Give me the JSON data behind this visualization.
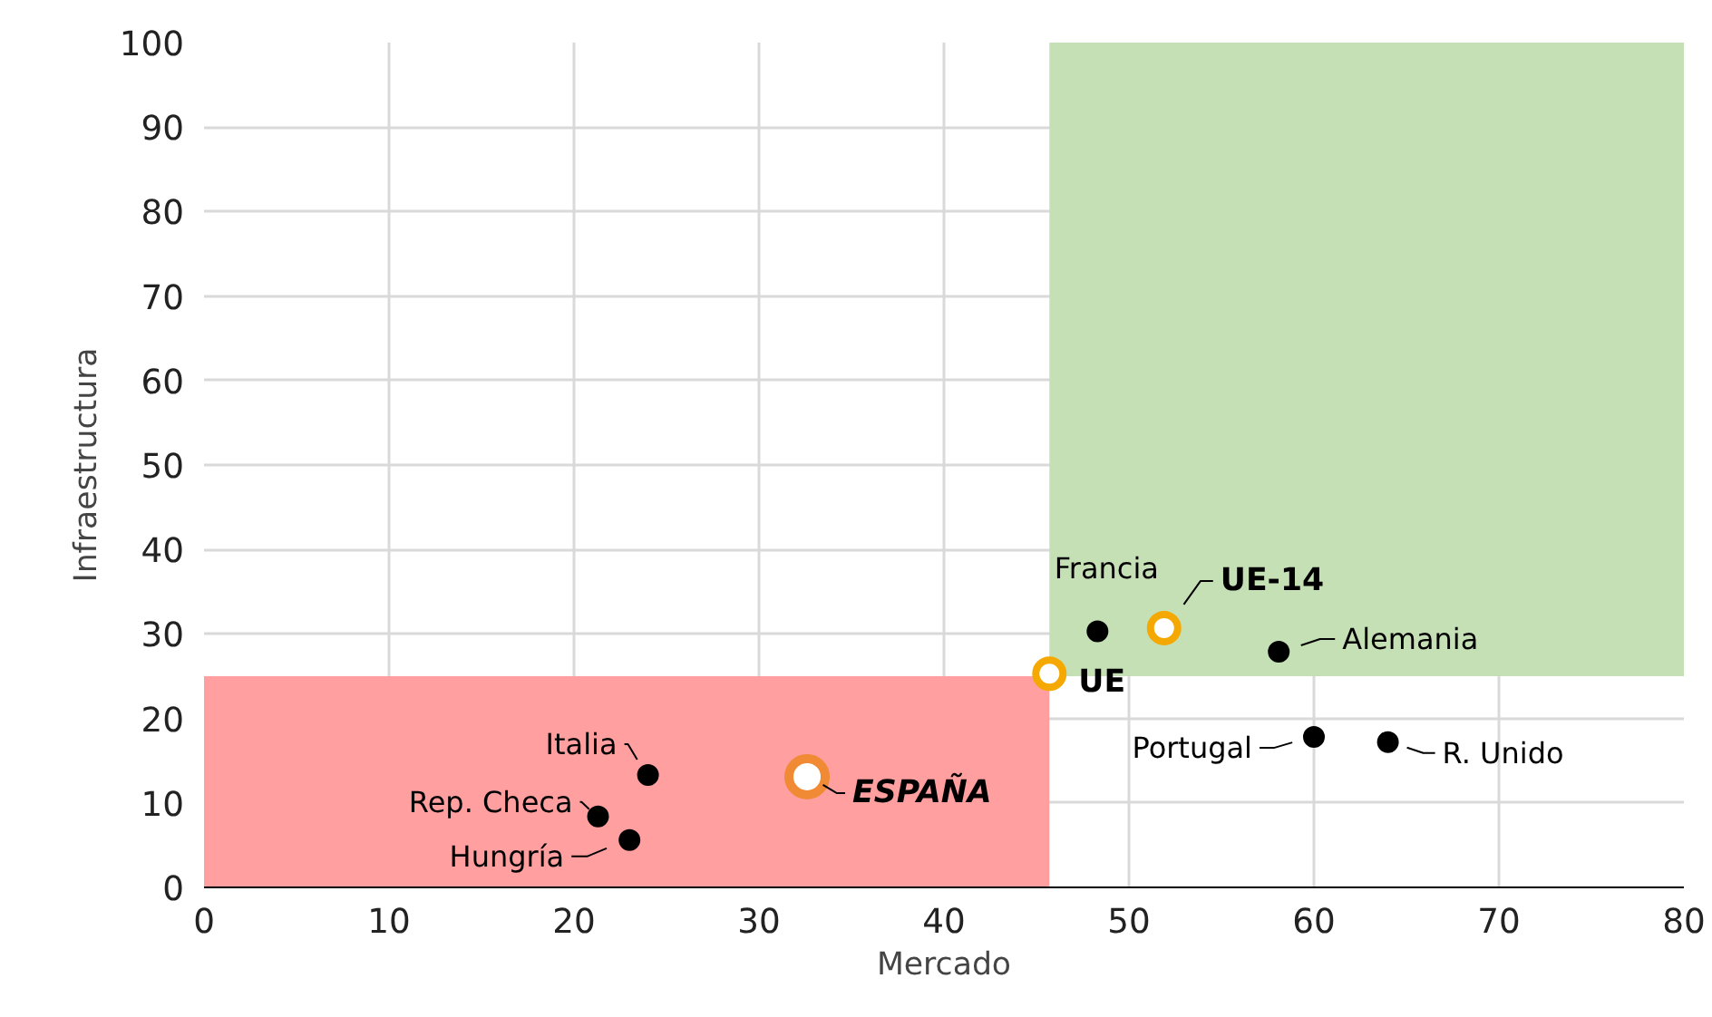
{
  "chart_data": {
    "type": "scatter",
    "xlabel": "Mercado",
    "ylabel": "Infraestructura",
    "xlim": [
      0,
      80
    ],
    "ylim": [
      0,
      100
    ],
    "xticks": [
      0,
      10,
      20,
      30,
      40,
      50,
      60,
      70,
      80
    ],
    "yticks": [
      0,
      10,
      20,
      30,
      40,
      50,
      60,
      70,
      80,
      90,
      100
    ],
    "grid": true,
    "marker": "circle",
    "series": [
      {
        "x": [
          24.0,
          21.3,
          23.0,
          48.3,
          58.1,
          60.0,
          64.0
        ],
        "values": [
          13.3,
          8.4,
          5.6,
          30.3,
          27.9,
          17.8,
          17.2
        ],
        "color": "#000000"
      },
      {
        "x": [
          45.7,
          51.9
        ],
        "values": [
          25.3,
          30.7
        ],
        "color": "#f5a800"
      },
      {
        "x": [
          32.6
        ],
        "values": [
          13.1
        ],
        "color": "#f08a34"
      }
    ],
    "bands": [
      {
        "axis": "x",
        "from": 0,
        "to": 45.7,
        "color": "#ff9f9f"
      },
      {
        "axis": "x",
        "from": 45.7,
        "to": 80,
        "color": "#c5e0b4"
      }
    ],
    "annotations": [
      {
        "text": "Italia",
        "x": 24.0,
        "y": 13.3
      },
      {
        "text": "Rep. Checa",
        "x": 21.3,
        "y": 8.4
      },
      {
        "text": "Hungría",
        "x": 23.0,
        "y": 5.6
      },
      {
        "text": "Francia",
        "x": 48.3,
        "y": 30.3
      },
      {
        "text": "Alemania",
        "x": 58.1,
        "y": 27.9
      },
      {
        "text": "Portugal",
        "x": 60.0,
        "y": 17.8
      },
      {
        "text": "R. Unido",
        "x": 64.0,
        "y": 17.2
      },
      {
        "text": "UE",
        "x": 45.7,
        "y": 25.3
      },
      {
        "text": "UE-14",
        "x": 51.9,
        "y": 30.7
      },
      {
        "text": "ESPAÑA",
        "x": 32.6,
        "y": 13.1
      }
    ]
  }
}
